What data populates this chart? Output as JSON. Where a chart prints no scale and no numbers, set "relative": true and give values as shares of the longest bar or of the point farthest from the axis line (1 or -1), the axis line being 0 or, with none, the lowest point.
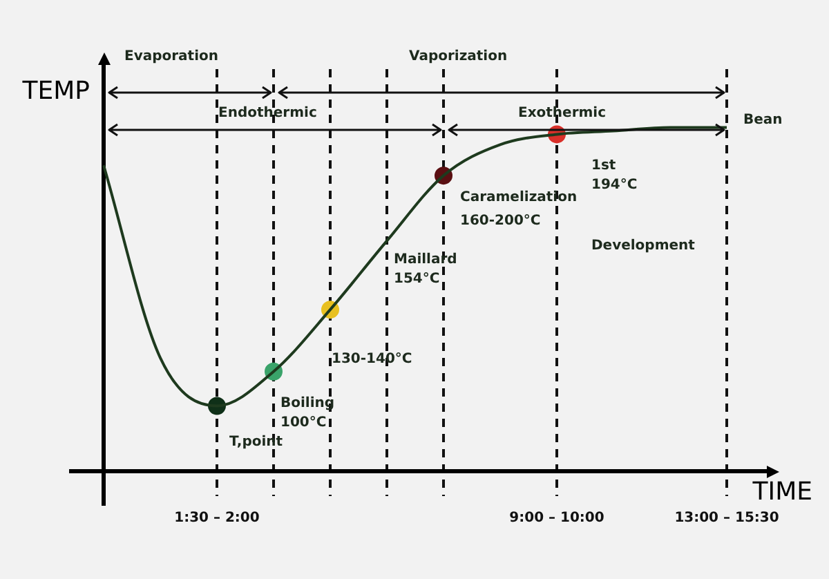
{
  "chart_data": {
    "type": "line",
    "relative": true,
    "xlabel": "TIME",
    "ylabel": "TEMP",
    "categories": [
      null,
      null,
      "1:30 – 2:00",
      null,
      null,
      null,
      null,
      null,
      "9:00 – 10:00",
      null,
      null,
      "13:00 – 15:30"
    ],
    "grid": "x",
    "legend": false,
    "line_style": "solid",
    "series": [
      {
        "color": "#1e3a1e",
        "marker": "none",
        "values": [
          0.89,
          0.33,
          0.19,
          0.29,
          0.47,
          0.67,
          0.86,
          0.95,
          0.98,
          0.99,
          1,
          1
        ]
      },
      {
        "type": "scatter",
        "marker": "circle",
        "values": [
          null,
          null,
          0.19,
          0.29,
          0.47,
          null,
          0.86,
          null,
          0.98,
          null,
          null,
          null
        ],
        "colors": [
          null,
          null,
          "#0f3018",
          "#3aa36a",
          "#e8c020",
          null,
          "#5a0f12",
          null,
          "#d9302a",
          null,
          null,
          null
        ]
      }
    ],
    "annotations": [
      "Evaporation",
      "Vaporization",
      "Endothermic",
      "Exothermic",
      "T,point",
      "Boiling",
      "100°C",
      "130-140°C",
      "Maillard",
      "154°C",
      "Caramelization",
      "160-200°C",
      "Development",
      "1st",
      "194°C",
      "Bean"
    ]
  }
}
